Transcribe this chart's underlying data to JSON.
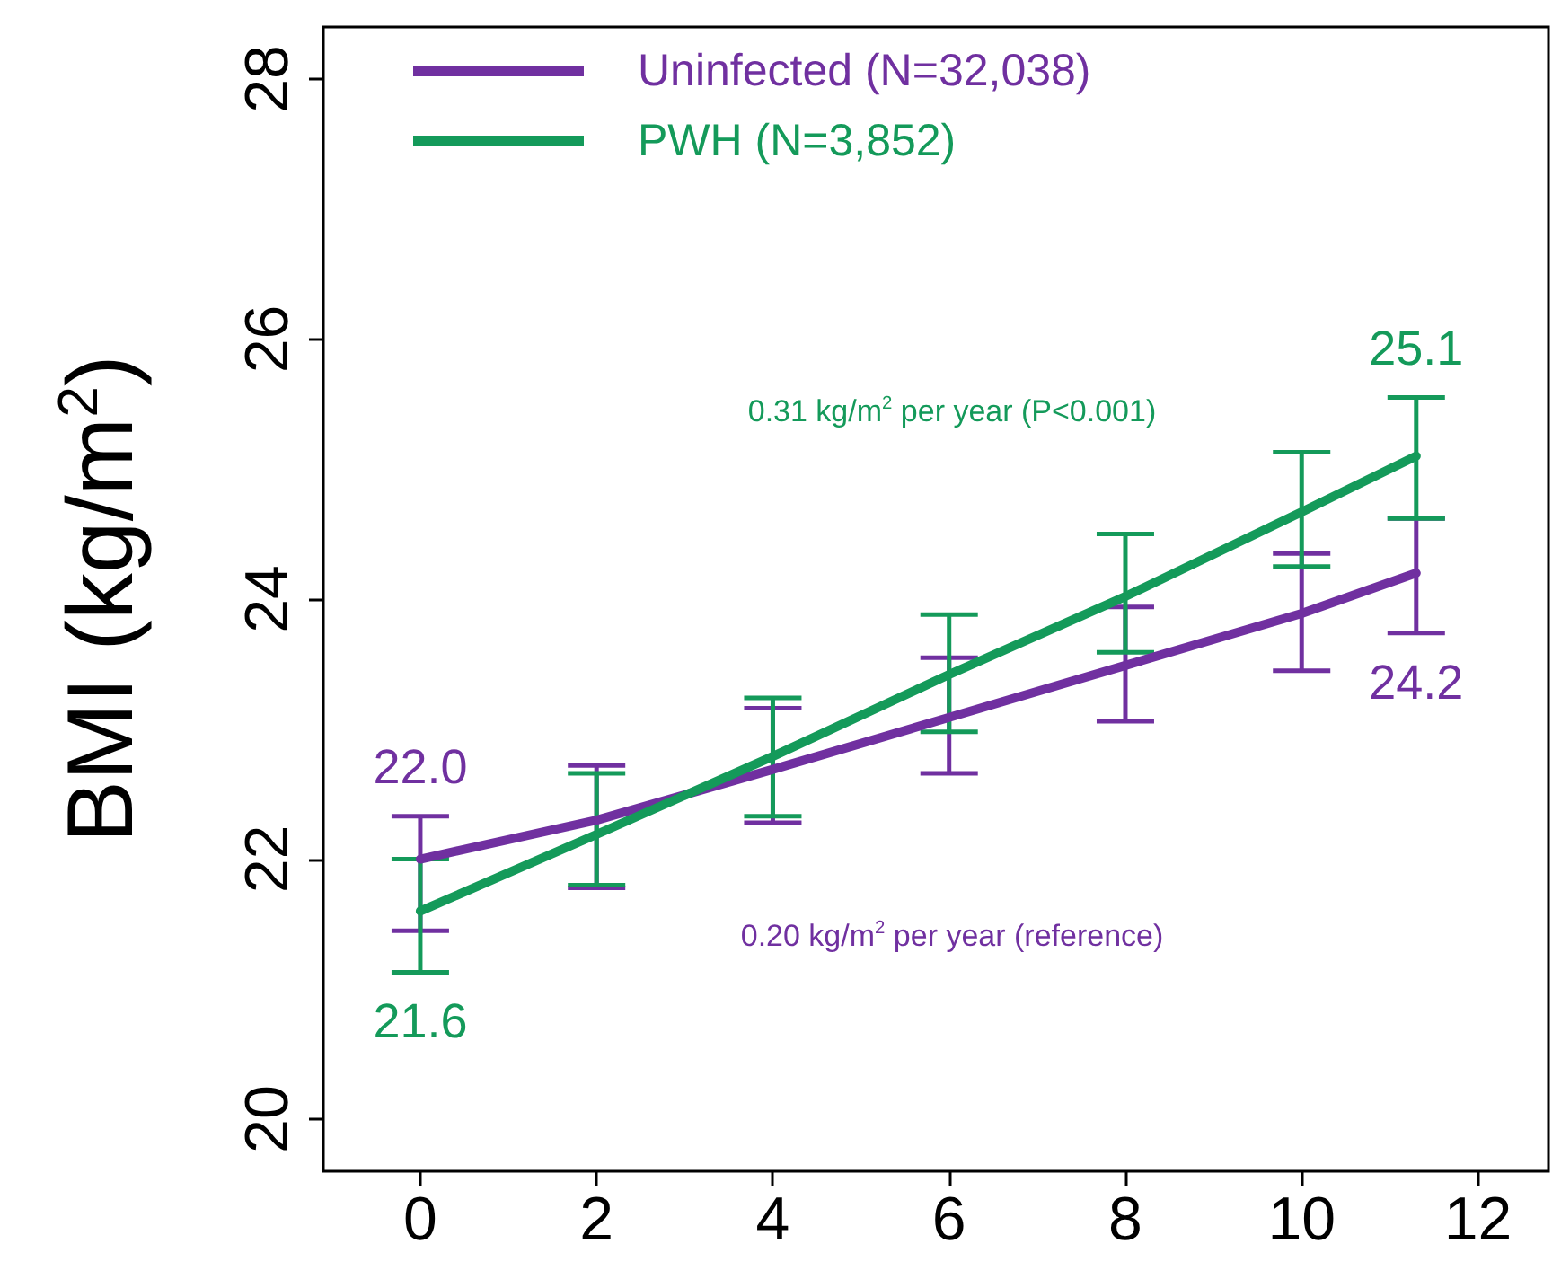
{
  "chart_data": {
    "type": "line",
    "ylabel": "BMI (kg/m$^{2}$)",
    "x": [
      0,
      2,
      4,
      6,
      8,
      10,
      11.3
    ],
    "series": [
      {
        "name": "Uninfected (N=32,038)",
        "color": "#7030a0",
        "values": [
          22.0,
          22.3,
          22.69,
          23.09,
          23.49,
          23.89,
          24.2
        ],
        "errors": [
          [
            21.45,
            22.33
          ],
          [
            21.78,
            22.72
          ],
          [
            22.28,
            23.16
          ],
          [
            22.66,
            23.55
          ],
          [
            23.06,
            23.94
          ],
          [
            23.45,
            24.35
          ],
          [
            23.74,
            24.62
          ]
        ],
        "value_labels": [
          "22.0",
          null,
          null,
          null,
          null,
          null,
          "24.2"
        ]
      },
      {
        "name": "PWH (N=3,852)",
        "color": "#149a5a",
        "values": [
          21.6,
          22.19,
          22.79,
          23.42,
          24.02,
          24.67,
          25.1
        ],
        "errors": [
          [
            21.13,
            22.0
          ],
          [
            21.8,
            22.66
          ],
          [
            22.33,
            23.24
          ],
          [
            22.98,
            23.88
          ],
          [
            23.59,
            24.5
          ],
          [
            24.25,
            25.13
          ],
          [
            24.62,
            25.55
          ]
        ],
        "value_labels": [
          "21.6",
          null,
          null,
          null,
          null,
          null,
          "25.1"
        ]
      }
    ],
    "annotations": [
      "0.20 kg/m$^{2}$ per year (reference)",
      "0.31 kg/m$^{2}$ per year (P<0.001)"
    ],
    "xlim": [
      -1.1,
      12.8
    ],
    "xticks": [
      0,
      2,
      4,
      6,
      8,
      10,
      12
    ],
    "ylim": [
      19.6,
      28.4
    ],
    "yticks": [
      20,
      22,
      24,
      26,
      28
    ],
    "legend": "top left",
    "grid": false,
    "marker": "none",
    "line_style": "solid"
  }
}
